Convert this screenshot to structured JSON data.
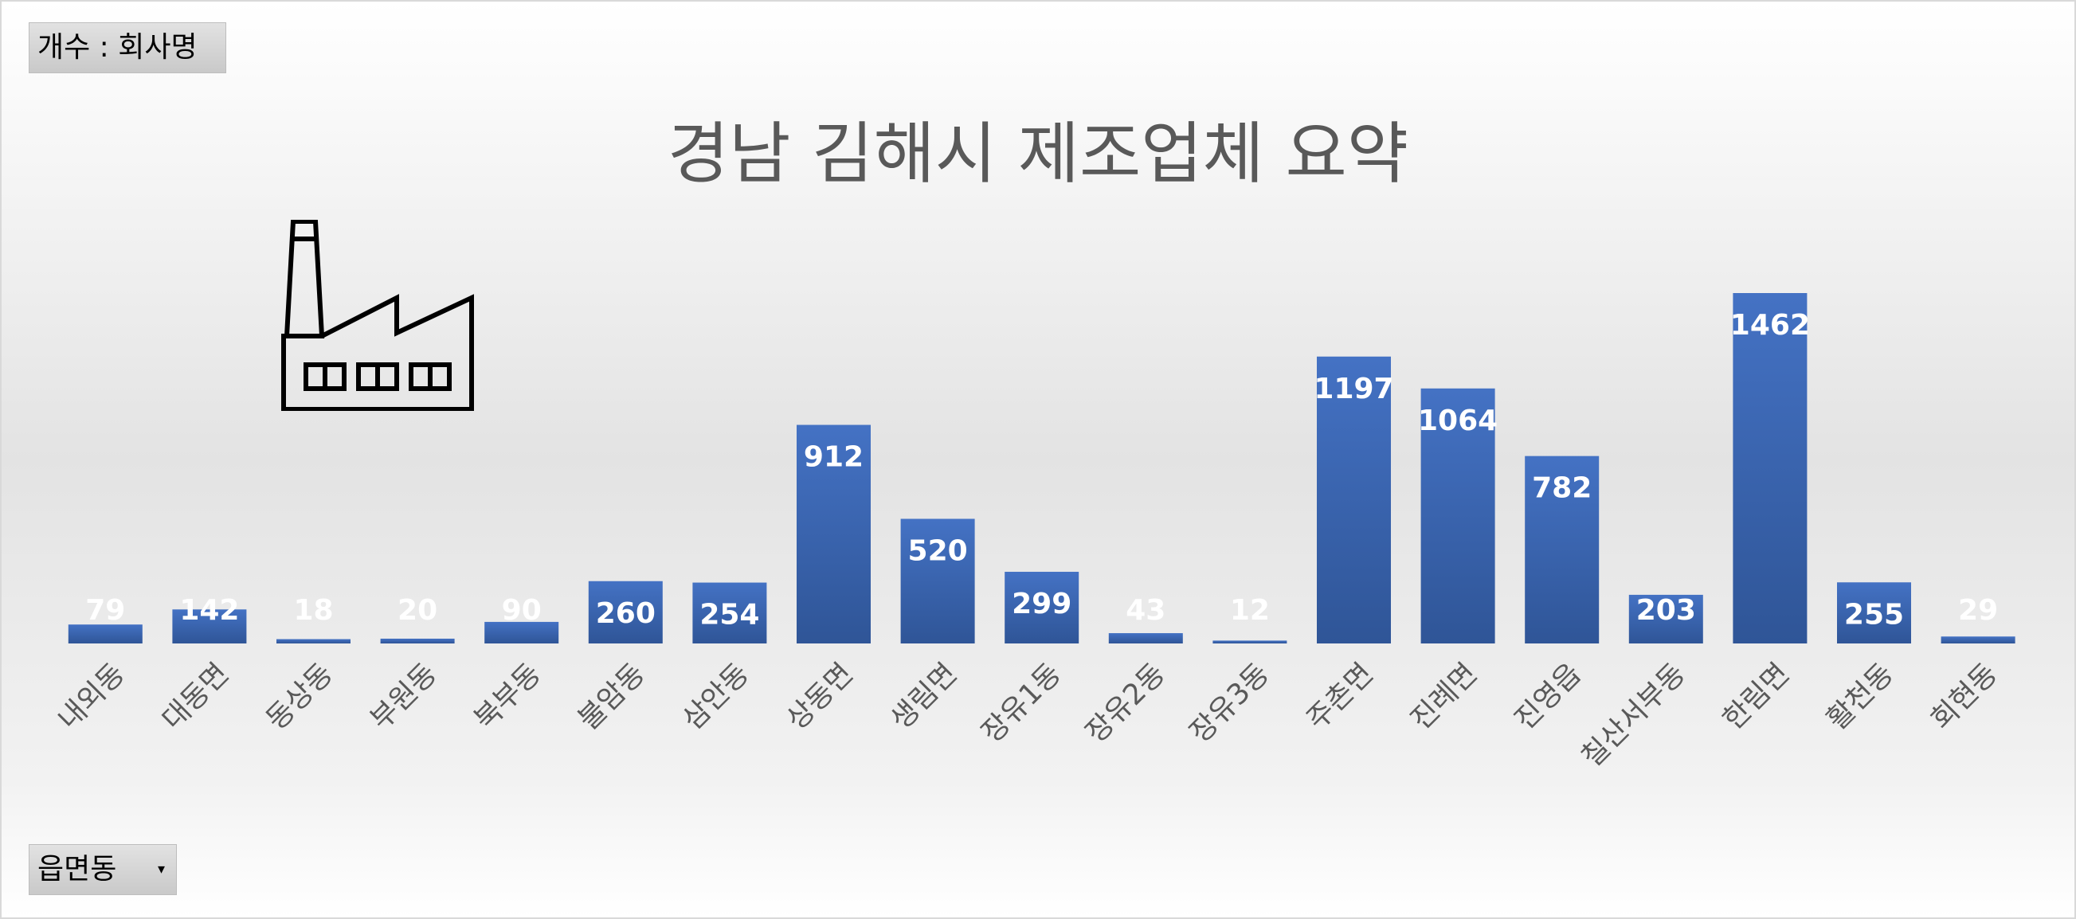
{
  "pivot": {
    "value_field": "개수 : 회사명",
    "axis_field": "읍면동",
    "axis_field_arrow": "▾"
  },
  "colors": {
    "bar": "#4472c4",
    "bar_dark": "#2f5597",
    "label": "#ffffff",
    "tick": "#595959"
  },
  "icons": {
    "illustration": "factory-icon"
  },
  "chart_data": {
    "type": "bar",
    "title": "경남 김해시 제조업체 요약",
    "xlabel": "",
    "ylabel": "",
    "categories": [
      "내외동",
      "대동면",
      "동상동",
      "부원동",
      "북부동",
      "불암동",
      "삼안동",
      "상동면",
      "생림면",
      "장유1동",
      "장유2동",
      "장유3동",
      "주촌면",
      "진례면",
      "진영읍",
      "칠산서부동",
      "한림면",
      "활천동",
      "회현동"
    ],
    "values": [
      79,
      142,
      18,
      20,
      90,
      260,
      254,
      912,
      520,
      299,
      43,
      12,
      1197,
      1064,
      782,
      203,
      1462,
      255,
      29
    ],
    "ylim": [
      0,
      1462
    ],
    "grid": false,
    "legend": "none",
    "data_labels": true
  }
}
